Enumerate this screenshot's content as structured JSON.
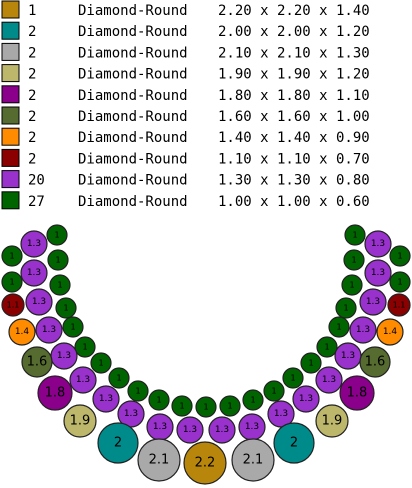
{
  "legend": [
    {
      "color": "#b8860b",
      "count": "1",
      "shape": "Diamond-Round",
      "size": "2.20 x 2.20 x 1.40"
    },
    {
      "color": "#008b8b",
      "count": "2",
      "shape": "Diamond-Round",
      "size": "2.00 x 2.00 x 1.20"
    },
    {
      "color": "#a9a9a9",
      "count": "2",
      "shape": "Diamond-Round",
      "size": "2.10 x 2.10 x 1.30"
    },
    {
      "color": "#bdb76b",
      "count": "2",
      "shape": "Diamond-Round",
      "size": "1.90 x 1.90 x 1.20"
    },
    {
      "color": "#8b008b",
      "count": "2",
      "shape": "Diamond-Round",
      "size": "1.80 x 1.80 x 1.10"
    },
    {
      "color": "#556b2f",
      "count": "2",
      "shape": "Diamond-Round",
      "size": "1.60 x 1.60 x 1.00"
    },
    {
      "color": "#ff8c00",
      "count": "2",
      "shape": "Diamond-Round",
      "size": "1.40 x 1.40 x 0.90"
    },
    {
      "color": "#8b0000",
      "count": "2",
      "shape": "Diamond-Round",
      "size": "1.10 x 1.10 x 0.70"
    },
    {
      "color": "#9932cc",
      "count": "20",
      "shape": "Diamond-Round",
      "size": "1.30 x 1.30 x 0.80"
    },
    {
      "color": "#006400",
      "count": "27",
      "shape": "Diamond-Round",
      "size": "1.00 x 1.00 x 0.60"
    }
  ],
  "stones": [
    "1",
    "1",
    "1",
    "1",
    "1",
    "1",
    "1",
    "1",
    "1",
    "1",
    "1",
    "1",
    "1",
    "1.3",
    "1.3",
    "1.3",
    "1.3",
    "1.3",
    "1.3",
    "1.3",
    "1.3",
    "1.3",
    "1.3",
    "2.1",
    "2",
    "1.9",
    "1.8",
    "1.6",
    "1.4",
    "1.1",
    "2.2",
    "1",
    "1",
    "1",
    "1",
    "1",
    "1",
    "1",
    "1",
    "1",
    "1",
    "1",
    "1",
    "1",
    "1",
    "1.3",
    "1.3",
    "1.3",
    "1.3",
    "1.3",
    "1.3",
    "1.3",
    "1.3",
    "1.3",
    "1.3",
    "2.1",
    "2",
    "1.9",
    "1.8",
    "1.6",
    "1.4",
    "1.1"
  ]
}
